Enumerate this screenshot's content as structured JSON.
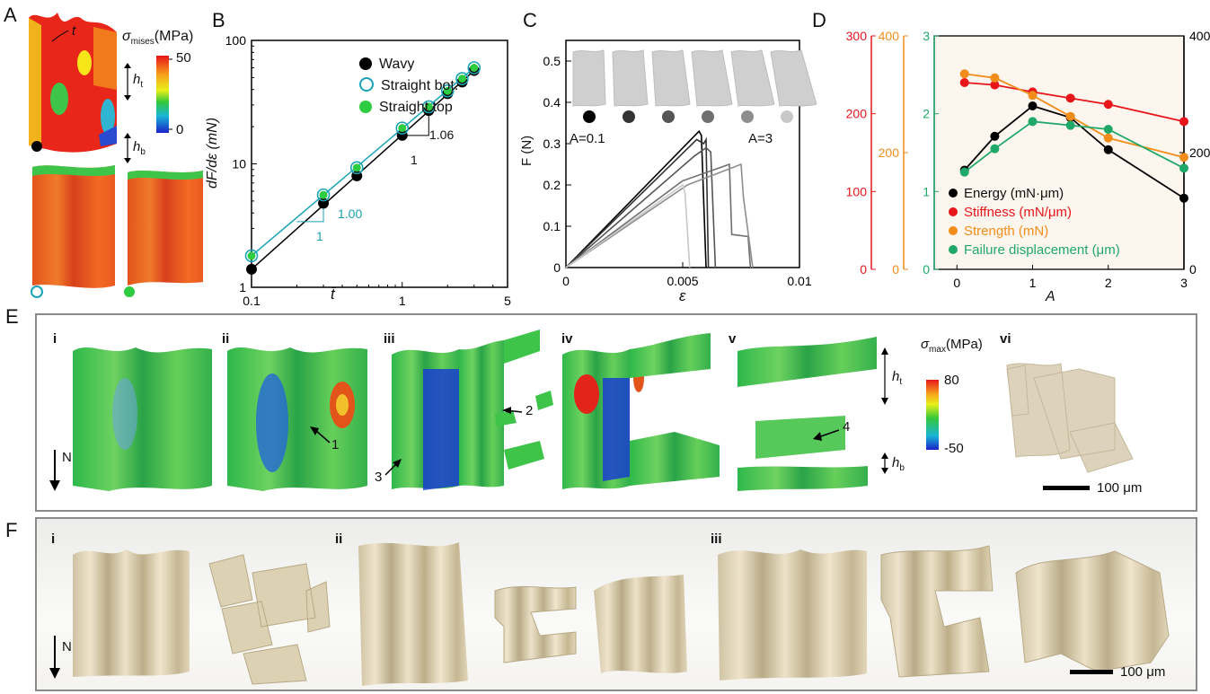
{
  "panels": {
    "A": "A",
    "B": "B",
    "C": "C",
    "D": "D",
    "E": "E",
    "F": "F"
  },
  "panelA": {
    "cbar_label": "σ",
    "cbar_sub": "mises",
    "cbar_unit": "(MPa)",
    "cbar_ticks": [
      "50",
      "0"
    ],
    "t_label": "t",
    "ht_label": "h",
    "ht_sub": "t",
    "hb_label": "h",
    "hb_sub": "b"
  },
  "panelB": {
    "ylabel": "dF/dε (mN)",
    "xlabel": "t̄",
    "legend": [
      "Wavy",
      "Straight bot.",
      "Straight top"
    ],
    "slope1_run": "1",
    "slope1_rise": "1.06",
    "slope2_run": "1",
    "slope2_rise": "1.00",
    "xticks": [
      "0.1",
      "1",
      "5"
    ],
    "yticks": [
      "100",
      "10",
      "1"
    ]
  },
  "panelC": {
    "ylabel": "F (N)",
    "xlabel": "ε",
    "xticks": [
      "0",
      "0.005",
      "0.01"
    ],
    "yticks": [
      "0",
      "0.1",
      "0.2",
      "0.3",
      "0.4",
      "0.5"
    ],
    "a_low": "A=0.1",
    "a_high": "A=3"
  },
  "panelD": {
    "xlabel": "A",
    "xticks": [
      "0",
      "1",
      "2",
      "3"
    ],
    "axis_red": [
      "0",
      "100",
      "200",
      "300"
    ],
    "axis_orange": [
      "0",
      "200",
      "400"
    ],
    "axis_green": [
      "0",
      "1",
      "2",
      "3"
    ],
    "axis_right": [
      "0",
      "200",
      "400"
    ],
    "legend": [
      "Energy (mN·μm)",
      "Stiffness (mN/μm)",
      "Strength (mN)",
      "Failure displacement (μm)"
    ]
  },
  "panelE": {
    "subs": [
      "i",
      "ii",
      "iii",
      "iv",
      "v",
      "vi"
    ],
    "arrows": [
      "1",
      "2",
      "3",
      "4"
    ],
    "n_label": "N",
    "cbar_label": "σ",
    "cbar_sub": "max",
    "cbar_unit": "(MPa)",
    "cbar_ticks": [
      "80",
      "-50"
    ],
    "ht_label": "h",
    "ht_sub": "t",
    "hb_label": "h",
    "hb_sub": "b",
    "scalebar": "100 μm"
  },
  "panelF": {
    "subs": [
      "i",
      "ii",
      "iii"
    ],
    "n_label": "N",
    "scalebar": "100 μm"
  },
  "colors": {
    "wavy": "#000000",
    "straight_bot": "#1aa3b5",
    "straight_top": "#2ecc40",
    "red": "#e8151b",
    "orange": "#f28c1a",
    "green": "#1fa86a"
  },
  "chart_data": [
    {
      "type": "scatter",
      "log_x": true,
      "log_y": true,
      "xlim": [
        0.1,
        5
      ],
      "ylim": [
        1,
        100
      ],
      "xlabel": "t̄",
      "ylabel": "dF/dε (mN)",
      "series": [
        {
          "name": "Wavy",
          "x": [
            0.1,
            0.3,
            0.5,
            1,
            1.5,
            2,
            2.5,
            3
          ],
          "y": [
            1.4,
            4.8,
            8.0,
            17,
            27,
            37,
            46,
            57
          ]
        },
        {
          "name": "Straight bot.",
          "x": [
            0.1,
            0.3,
            0.5,
            1,
            1.5,
            2,
            2.5,
            3
          ],
          "y": [
            1.8,
            5.6,
            9.3,
            19.5,
            29,
            39,
            49,
            60
          ]
        },
        {
          "name": "Straight top",
          "x": [
            0.1,
            0.3,
            0.5,
            1,
            1.5,
            2,
            2.5,
            3
          ],
          "y": [
            1.8,
            5.6,
            9.3,
            19.5,
            29,
            39,
            49,
            60
          ]
        }
      ]
    },
    {
      "type": "line",
      "xlim": [
        0,
        0.01
      ],
      "ylim": [
        0,
        0.55
      ],
      "xlabel": "ε",
      "ylabel": "F (N)",
      "series": [
        {
          "x": [
            0,
            0.0057,
            0.0058,
            0.006
          ],
          "y": [
            0,
            0.33,
            0.32,
            0.0
          ]
        },
        {
          "x": [
            0,
            0.0056,
            0.0059,
            0.006,
            0.0061
          ],
          "y": [
            0,
            0.31,
            0.3,
            0.31,
            0.0
          ]
        },
        {
          "x": [
            0,
            0.0055,
            0.006,
            0.0062,
            0.0064
          ],
          "y": [
            0,
            0.27,
            0.29,
            0.28,
            0.0
          ]
        },
        {
          "x": [
            0,
            0.005,
            0.007,
            0.0071,
            0.0078,
            0.0079
          ],
          "y": [
            0,
            0.21,
            0.25,
            0.08,
            0.075,
            0.0
          ]
        },
        {
          "x": [
            0,
            0.0052,
            0.0075,
            0.0076,
            0.008
          ],
          "y": [
            0,
            0.2,
            0.25,
            0.17,
            0.0
          ]
        },
        {
          "x": [
            0,
            0.005,
            0.0051,
            0.0053
          ],
          "y": [
            0,
            0.2,
            0.18,
            0.0
          ]
        }
      ]
    },
    {
      "type": "line",
      "x": [
        0.1,
        0.5,
        1,
        1.5,
        2,
        3
      ],
      "series": [
        {
          "name": "Energy (mN·μm)",
          "values": [
            170,
            228,
            280,
            260,
            205,
            122
          ],
          "axis": "right",
          "ylim": [
            0,
            400
          ]
        },
        {
          "name": "Stiffness (mN/μm)",
          "values": [
            240,
            237,
            228,
            220,
            212,
            190
          ],
          "axis": "red",
          "ylim": [
            0,
            300
          ]
        },
        {
          "name": "Strength (mN)",
          "values": [
            335,
            328,
            298,
            262,
            225,
            192
          ],
          "axis": "orange",
          "ylim": [
            0,
            400
          ]
        },
        {
          "name": "Failure displacement (μm)",
          "values": [
            1.25,
            1.55,
            1.9,
            1.85,
            1.8,
            1.3
          ],
          "axis": "green",
          "ylim": [
            0,
            3
          ]
        }
      ]
    }
  ]
}
